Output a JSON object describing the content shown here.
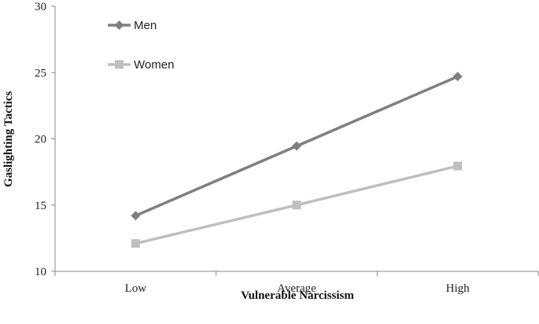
{
  "chart_data": {
    "type": "line",
    "title": "",
    "xlabel": "Vulnerable Narcissism",
    "ylabel": "Gaslighting Tactics",
    "categories": [
      "Low",
      "Average",
      "High"
    ],
    "ylim": [
      10,
      30
    ],
    "yticks": [
      10,
      15,
      20,
      25,
      30
    ],
    "grid": false,
    "legend_position": "top-left",
    "series": [
      {
        "name": "Men",
        "values": [
          14.2,
          19.45,
          24.7
        ],
        "color": "#7f7f7f",
        "marker": "diamond"
      },
      {
        "name": "Women",
        "values": [
          12.1,
          15.0,
          17.95
        ],
        "color": "#bfbfbf",
        "marker": "square"
      }
    ]
  }
}
